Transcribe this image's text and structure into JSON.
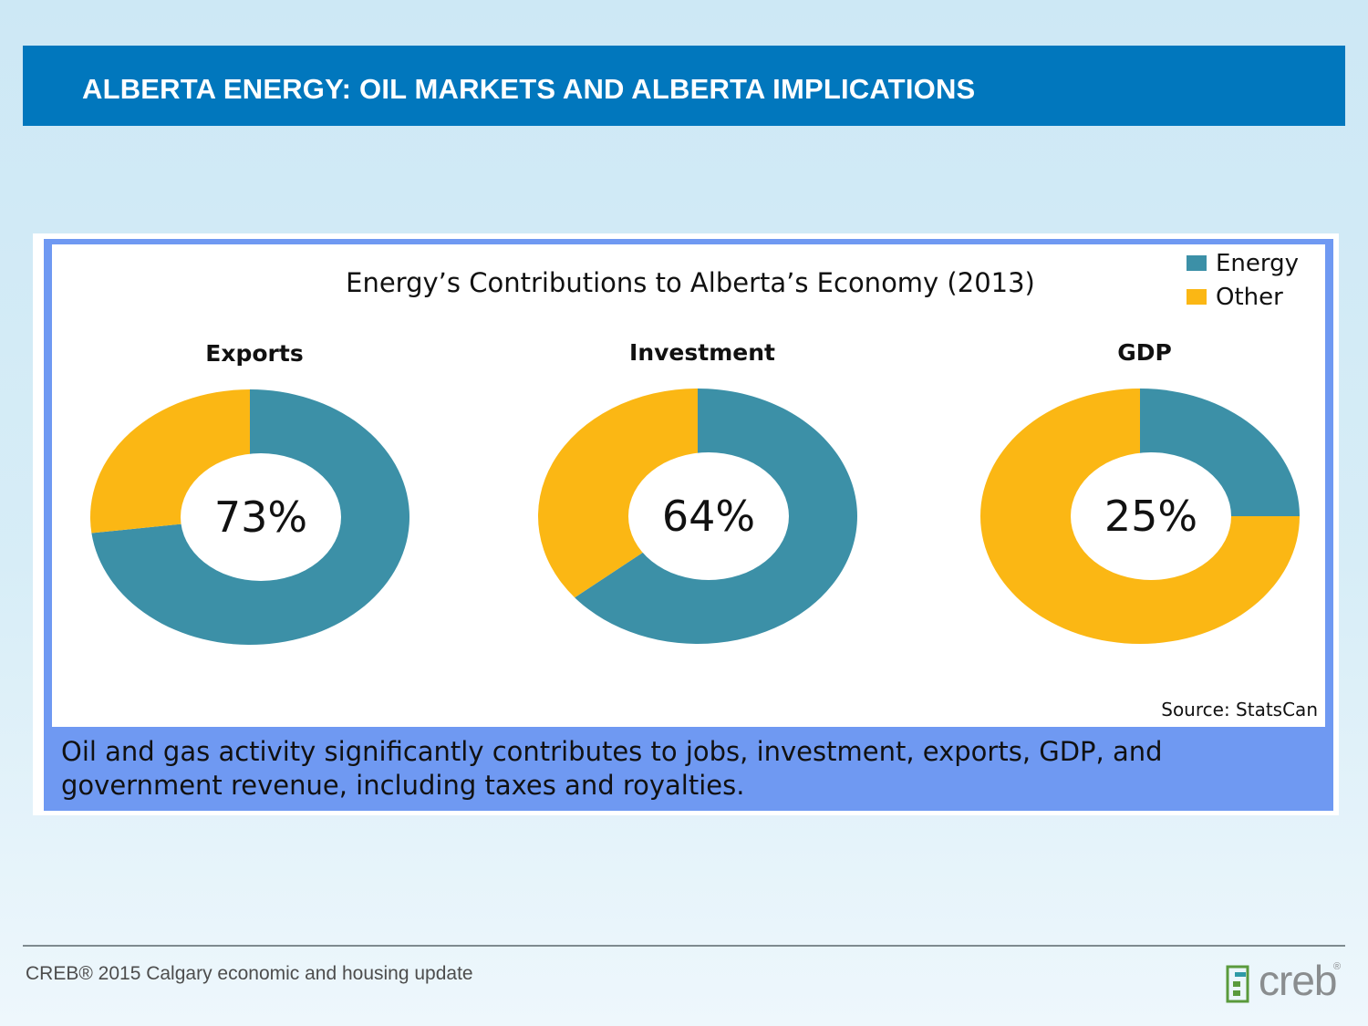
{
  "slide": {
    "title": "ALBERTA ENERGY: OIL MARKETS AND ALBERTA IMPLICATIONS",
    "caption": "Oil and gas activity significantly contributes to jobs, investment, exports, GDP, and government revenue, including taxes and royalties.",
    "footer": "CREB® 2015 Calgary economic and housing update",
    "logo_text": "creb",
    "logo_mark": "®"
  },
  "colors": {
    "energy": "#3c90a7",
    "other": "#fbb714",
    "header": "#0177bd",
    "frame": "#6f99f2"
  },
  "chart_data": {
    "type": "pie",
    "title": "Energy’s Contributions to Alberta’s Economy (2013)",
    "source": "Source: StatsCan",
    "legend": {
      "placement": "top-right",
      "entries": [
        "Energy",
        "Other"
      ]
    },
    "charts": [
      {
        "name": "Exports",
        "center_label": "73%",
        "values": {
          "Energy": 73,
          "Other": 27
        }
      },
      {
        "name": "Investment",
        "center_label": "64%",
        "values": {
          "Energy": 64,
          "Other": 36
        }
      },
      {
        "name": "GDP",
        "center_label": "25%",
        "values": {
          "Energy": 25,
          "Other": 75
        }
      }
    ]
  }
}
